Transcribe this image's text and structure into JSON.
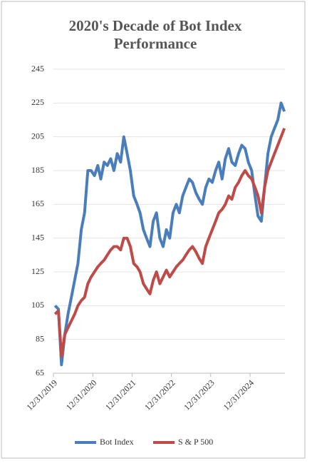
{
  "chart_data": {
    "type": "line",
    "title": [
      "2020's Decade of Bot Index",
      "Performance"
    ],
    "x": [
      "2020-01-15",
      "2020-02-15",
      "2020-03-15",
      "2020-04-15",
      "2020-05-15",
      "2020-06-15",
      "2020-07-15",
      "2020-08-15",
      "2020-09-15",
      "2020-10-15",
      "2020-11-15",
      "2020-12-15",
      "2021-01-15",
      "2021-02-15",
      "2021-03-15",
      "2021-04-15",
      "2021-05-15",
      "2021-06-15",
      "2021-07-15",
      "2021-08-15",
      "2021-09-15",
      "2021-10-15",
      "2021-11-15",
      "2021-12-15",
      "2022-01-15",
      "2022-02-15",
      "2022-03-15",
      "2022-04-15",
      "2022-05-15",
      "2022-06-15",
      "2022-07-15",
      "2022-08-15",
      "2022-09-15",
      "2022-10-15",
      "2022-11-15",
      "2022-12-15",
      "2023-01-15",
      "2023-02-15",
      "2023-03-15",
      "2023-04-15",
      "2023-05-15",
      "2023-06-15",
      "2023-07-15",
      "2023-08-15",
      "2023-09-15",
      "2023-10-15",
      "2023-11-15",
      "2023-12-15",
      "2024-01-15",
      "2024-02-15",
      "2024-03-15",
      "2024-04-15",
      "2024-05-15",
      "2024-06-15",
      "2024-07-15",
      "2024-08-15",
      "2024-09-15",
      "2024-10-15",
      "2024-11-15",
      "2024-12-15",
      "2025-01-15",
      "2025-02-15",
      "2025-03-15",
      "2025-04-15",
      "2025-05-15",
      "2025-06-15",
      "2025-07-15",
      "2025-08-15",
      "2025-09-15",
      "2025-10-15",
      "2025-11-15"
    ],
    "series": [
      {
        "name": "Bot Index",
        "color": "#4a7ebb",
        "values": [
          105,
          103,
          70,
          88,
          100,
          110,
          120,
          130,
          150,
          160,
          185,
          185,
          182,
          188,
          180,
          190,
          188,
          192,
          185,
          195,
          190,
          205,
          195,
          185,
          170,
          165,
          160,
          150,
          145,
          140,
          155,
          160,
          145,
          140,
          150,
          145,
          160,
          165,
          160,
          170,
          175,
          180,
          178,
          172,
          168,
          165,
          175,
          180,
          178,
          185,
          190,
          180,
          192,
          198,
          190,
          188,
          195,
          200,
          198,
          190,
          185,
          170,
          158,
          155,
          175,
          195,
          205,
          210,
          215,
          225,
          220
        ]
      },
      {
        "name": "S & P 500",
        "color": "#be4b48",
        "values": [
          100,
          102,
          75,
          88,
          92,
          96,
          100,
          105,
          108,
          110,
          118,
          122,
          125,
          128,
          130,
          132,
          135,
          138,
          140,
          140,
          138,
          145,
          145,
          140,
          130,
          128,
          125,
          118,
          115,
          112,
          120,
          125,
          118,
          122,
          126,
          122,
          125,
          128,
          130,
          132,
          135,
          138,
          140,
          137,
          133,
          130,
          140,
          145,
          150,
          155,
          160,
          162,
          165,
          170,
          168,
          175,
          178,
          182,
          185,
          182,
          180,
          175,
          170,
          160,
          175,
          185,
          190,
          195,
          200,
          205,
          210
        ]
      }
    ],
    "xlim": [
      "2019-12-31",
      "2025-11-20"
    ],
    "xticks": [
      {
        "value": "2019-12-31",
        "label": "12/31/2019"
      },
      {
        "value": "2020-12-31",
        "label": "12/31/2020"
      },
      {
        "value": "2021-12-31",
        "label": "12/31/2021"
      },
      {
        "value": "2022-12-31",
        "label": "12/31/2022"
      },
      {
        "value": "2023-12-31",
        "label": "12/31/2023"
      },
      {
        "value": "2024-12-31",
        "label": "12/31/2024"
      }
    ],
    "ylim": [
      65,
      245
    ],
    "yticks": [
      65,
      85,
      105,
      125,
      145,
      165,
      185,
      205,
      225,
      245
    ],
    "grid": true,
    "legend": "bottom"
  }
}
